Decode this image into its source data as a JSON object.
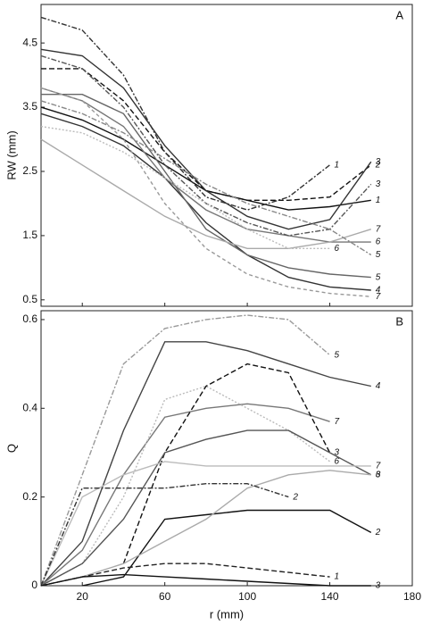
{
  "chart_data": [
    {
      "type": "line",
      "panel_label": "A",
      "ylabel": "RW (mm)",
      "x": [
        0,
        20,
        40,
        60,
        80,
        100,
        120,
        140,
        160
      ],
      "xlim": [
        0,
        180
      ],
      "xticks": [
        20,
        60,
        100,
        140,
        180
      ],
      "xtick_labels": false,
      "ylim": [
        0.4,
        5.1
      ],
      "yticks": [
        0.5,
        1.5,
        2.5,
        3.5,
        4.5
      ],
      "series": [
        {
          "name": "1",
          "color": "#111111",
          "dash": "none",
          "values": [
            3.5,
            3.3,
            3.0,
            2.6,
            2.2,
            2.05,
            1.9,
            1.95,
            2.05
          ]
        },
        {
          "name": "2",
          "color": "#111111",
          "dash": "6,3",
          "values": [
            4.1,
            4.1,
            3.6,
            2.8,
            2.2,
            2.05,
            2.05,
            2.1,
            2.6
          ]
        },
        {
          "name": "3",
          "color": "#333333",
          "dash": "none",
          "values": [
            4.4,
            4.3,
            3.8,
            2.9,
            2.2,
            1.8,
            1.6,
            1.75,
            2.65
          ]
        },
        {
          "name": "4",
          "color": "#333333",
          "dash": "none",
          "values": [
            3.4,
            3.2,
            2.9,
            2.4,
            1.7,
            1.2,
            0.85,
            0.7,
            0.65
          ]
        },
        {
          "name": "5",
          "color": "#666666",
          "dash": "none",
          "values": [
            3.7,
            3.7,
            3.4,
            2.5,
            1.6,
            1.2,
            1.0,
            0.9,
            0.85
          ]
        },
        {
          "name": "6",
          "color": "#777777",
          "dash": "none",
          "values": [
            3.8,
            3.6,
            3.2,
            2.4,
            1.9,
            1.6,
            1.5,
            1.4,
            1.4
          ]
        },
        {
          "name": "7",
          "color": "#aaaaaa",
          "dash": "none",
          "values": [
            3.0,
            2.6,
            2.2,
            1.8,
            1.5,
            1.3,
            1.3,
            1.4,
            1.6
          ]
        },
        {
          "name": "7",
          "color": "#999999",
          "dash": "4,3",
          "values": [
            3.8,
            3.6,
            3.0,
            2.0,
            1.3,
            0.9,
            0.7,
            0.6,
            0.55
          ]
        },
        {
          "name": "1",
          "color": "#333333",
          "dash": "6,2,2,2",
          "values": [
            4.9,
            4.7,
            4.0,
            2.8,
            2.1,
            1.9,
            2.1,
            2.6,
            null
          ]
        },
        {
          "name": "3",
          "color": "#555555",
          "dash": "6,2,2,2",
          "values": [
            4.3,
            4.1,
            3.5,
            2.6,
            2.0,
            1.7,
            1.5,
            1.6,
            2.3
          ]
        },
        {
          "name": "5",
          "color": "#888888",
          "dash": "6,2,2,2",
          "values": [
            3.6,
            3.4,
            3.1,
            2.7,
            2.3,
            2.0,
            1.8,
            1.6,
            1.2
          ]
        },
        {
          "name": "6",
          "color": "#bbbbbb",
          "dash": "2,2",
          "values": [
            3.2,
            3.1,
            2.8,
            2.4,
            2.0,
            1.6,
            1.3,
            1.3,
            null
          ]
        }
      ]
    },
    {
      "type": "line",
      "panel_label": "B",
      "ylabel": "Q",
      "xlabel": "r (mm)",
      "x": [
        0,
        20,
        40,
        60,
        80,
        100,
        120,
        140,
        160
      ],
      "xlim": [
        0,
        180
      ],
      "xticks": [
        20,
        60,
        100,
        140,
        180
      ],
      "xtick_labels": true,
      "ylim": [
        0,
        0.62
      ],
      "yticks": [
        0,
        0.2,
        0.4,
        0.6
      ],
      "series": [
        {
          "name": "5",
          "color": "#999999",
          "dash": "6,2,2,2",
          "values": [
            0,
            0.25,
            0.5,
            0.58,
            0.6,
            0.61,
            0.6,
            0.52,
            null
          ]
        },
        {
          "name": "4",
          "color": "#444444",
          "dash": "none",
          "values": [
            0,
            0.1,
            0.35,
            0.55,
            0.55,
            0.53,
            0.5,
            0.47,
            0.45
          ]
        },
        {
          "name": "7",
          "color": "#777777",
          "dash": "none",
          "values": [
            0,
            0.08,
            0.25,
            0.38,
            0.4,
            0.41,
            0.4,
            0.37,
            null
          ]
        },
        {
          "name": "6",
          "color": "#bbbbbb",
          "dash": "2,2",
          "values": [
            0,
            0.05,
            0.2,
            0.42,
            0.45,
            0.4,
            0.35,
            0.28,
            null
          ]
        },
        {
          "name": "3",
          "color": "#111111",
          "dash": "6,3",
          "values": [
            null,
            null,
            0.05,
            0.3,
            0.45,
            0.5,
            0.48,
            0.3,
            null
          ]
        },
        {
          "name": "3",
          "color": "#555555",
          "dash": "none",
          "values": [
            0,
            0.05,
            0.15,
            0.3,
            0.33,
            0.35,
            0.35,
            0.3,
            0.25
          ]
        },
        {
          "name": "2",
          "color": "#111111",
          "dash": "none",
          "values": [
            null,
            0.0,
            0.02,
            0.15,
            0.16,
            0.17,
            0.17,
            0.17,
            0.12
          ]
        },
        {
          "name": "6",
          "color": "#aaaaaa",
          "dash": "none",
          "values": [
            0,
            0.02,
            0.05,
            0.1,
            0.15,
            0.22,
            0.25,
            0.26,
            0.25
          ]
        },
        {
          "name": "7",
          "color": "#bbbbbb",
          "dash": "none",
          "values": [
            0,
            0.2,
            0.25,
            0.28,
            0.27,
            0.27,
            0.27,
            0.27,
            0.27
          ]
        },
        {
          "name": "2",
          "color": "#333333",
          "dash": "6,2,2,2",
          "values": [
            0,
            0.22,
            0.22,
            0.22,
            0.23,
            0.23,
            0.2,
            null,
            null
          ]
        },
        {
          "name": "1",
          "color": "#222222",
          "dash": "6,3",
          "values": [
            0,
            0.02,
            0.04,
            0.05,
            0.05,
            0.04,
            0.03,
            0.02,
            null
          ]
        },
        {
          "name": "3",
          "color": "#111111",
          "dash": "none",
          "values": [
            0,
            0.02,
            0.025,
            0.02,
            0.015,
            0.01,
            0.005,
            0.0,
            0.0
          ]
        }
      ]
    }
  ]
}
